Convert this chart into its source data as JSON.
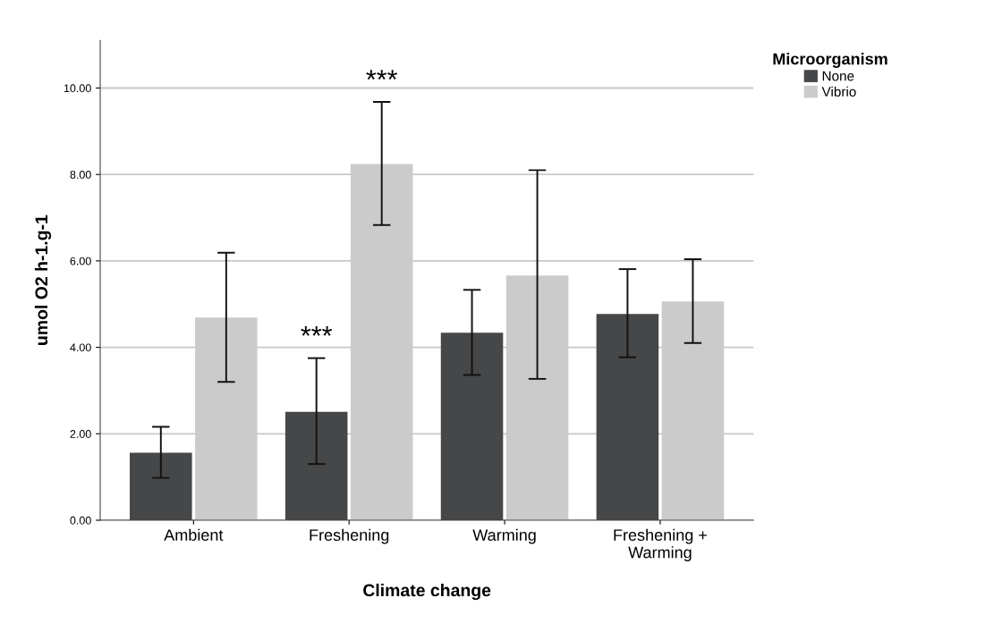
{
  "chart_data": {
    "type": "bar",
    "xlabel": "Climate change",
    "ylabel": "umol O2 h-1.g-1",
    "legend_title": "Microorganism",
    "categories": [
      "Ambient",
      "Freshening",
      "Warming",
      "Freshening +\nWarming"
    ],
    "series": [
      {
        "name": "None",
        "color": "#464749",
        "values": [
          1.56,
          2.51,
          4.34,
          4.77
        ],
        "errors": [
          [
            0.98,
            2.16
          ],
          [
            1.3,
            3.75
          ],
          [
            3.36,
            5.33
          ],
          [
            3.77,
            5.81
          ]
        ]
      },
      {
        "name": "Vibrio",
        "color": "#cbcbcb",
        "values": [
          4.69,
          8.24,
          5.66,
          5.06
        ],
        "errors": [
          [
            3.2,
            6.19
          ],
          [
            6.83,
            9.68
          ],
          [
            3.27,
            8.1
          ],
          [
            4.1,
            6.04
          ]
        ]
      }
    ],
    "ylim": [
      0,
      11.1
    ],
    "yticks": [
      {
        "value": 0,
        "label": "0.00"
      },
      {
        "value": 2,
        "label": "2.00"
      },
      {
        "value": 4,
        "label": "4.00"
      },
      {
        "value": 6,
        "label": "6.00"
      },
      {
        "value": 8,
        "label": "8.00"
      },
      {
        "value": 10,
        "label": "10.00"
      }
    ],
    "grid": "y",
    "legend": "right",
    "annotations": [
      {
        "text": "***",
        "x": "Freshening",
        "y": 3.75
      },
      "***"
    ]
  }
}
